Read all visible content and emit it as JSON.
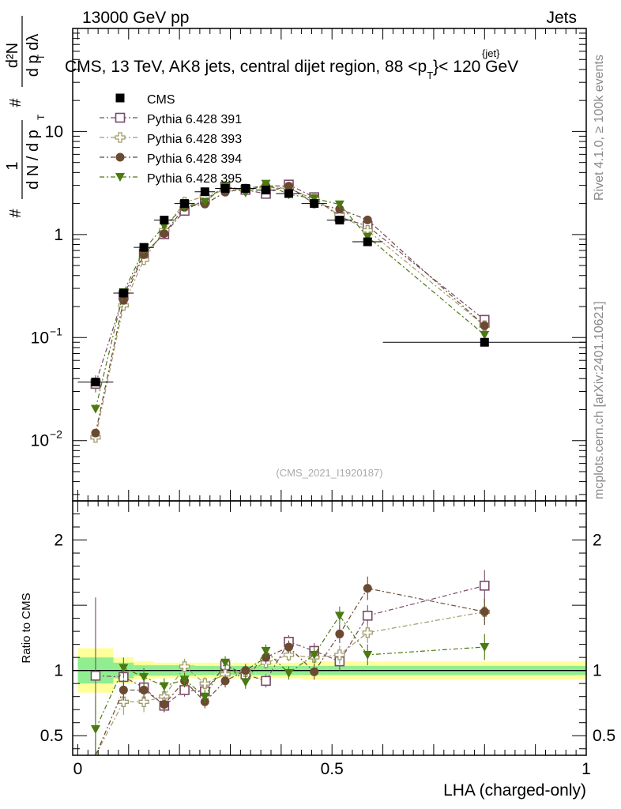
{
  "header": {
    "left": "13000 GeV pp",
    "right": "Jets"
  },
  "title": "CMS, 13 TeV, AK8 jets, central dijet region, 88 <p",
  "title_sup": "{jet}",
  "title_sub": "T",
  "title_end": "}< 120 GeV",
  "side_top": "Rivet 4.1.0, ≥ 100k events",
  "side_bottom": "mcplots.cern.ch [arXiv:2401.10621]",
  "watermark": "(CMS_2021_I1920187)",
  "ylabel_main": "1/N dN/dpT d²N/dpT dλ",
  "ylabel_ratio": "Ratio to CMS",
  "xlabel": "LHA (charged-only)",
  "colors": {
    "cms": "#000000",
    "p391": "#7a4a6a",
    "p393": "#a09a6a",
    "p394": "#6b4a32",
    "p395": "#4a7a10",
    "band_inner": "#90ee90",
    "band_outer": "#ffff99"
  },
  "chart_data": {
    "type": "scatter",
    "x_edges": [
      0.0,
      0.07,
      0.11,
      0.15,
      0.19,
      0.23,
      0.27,
      0.31,
      0.35,
      0.39,
      0.44,
      0.49,
      0.54,
      0.6,
      1.0
    ],
    "x": [
      0.035,
      0.09,
      0.13,
      0.17,
      0.21,
      0.25,
      0.29,
      0.33,
      0.37,
      0.415,
      0.465,
      0.515,
      0.57,
      0.8
    ],
    "xlim": [
      -0.01,
      1.0
    ],
    "ylim_main": [
      0.0026,
      100
    ],
    "ylim_ratio": [
      0.35,
      2.3
    ],
    "xticks": [
      {
        "v": 0,
        "label": "0"
      },
      {
        "v": 0.5,
        "label": "0.5"
      },
      {
        "v": 1,
        "label": "1"
      }
    ],
    "yticks_main": [
      {
        "v": 0.01,
        "base": "10",
        "exp": "−2"
      },
      {
        "v": 0.1,
        "base": "10",
        "exp": "−1"
      },
      {
        "v": 1,
        "base": "1",
        "exp": ""
      },
      {
        "v": 10,
        "base": "10",
        "exp": ""
      }
    ],
    "yticks_ratio": [
      {
        "v": 0.5,
        "label": "0.5"
      },
      {
        "v": 1,
        "label": "1"
      },
      {
        "v": 2,
        "label": "2"
      }
    ],
    "cms": [
      0.037,
      0.27,
      0.75,
      1.38,
      2.0,
      2.6,
      2.8,
      2.8,
      2.7,
      2.5,
      2.0,
      1.38,
      0.85,
      0.09
    ],
    "band_inner": [
      0.1,
      0.06,
      0.04,
      0.04,
      0.04,
      0.035,
      0.035,
      0.035,
      0.035,
      0.035,
      0.035,
      0.035,
      0.035,
      0.035
    ],
    "band_outer": [
      0.17,
      0.1,
      0.07,
      0.06,
      0.06,
      0.06,
      0.06,
      0.06,
      0.06,
      0.06,
      0.07,
      0.07,
      0.07,
      0.07
    ],
    "series": [
      {
        "name": "Pythia 6.428 391",
        "marker": "open-square",
        "color": "#7a4a6a",
        "ratio": [
          0.96,
          0.95,
          0.87,
          0.73,
          0.85,
          0.84,
          1.04,
          0.97,
          0.92,
          1.22,
          1.15,
          1.07,
          1.42,
          1.65
        ],
        "err": [
          0.6,
          0.08,
          0.06,
          0.05,
          0.05,
          0.05,
          0.05,
          0.05,
          0.05,
          0.05,
          0.06,
          0.07,
          0.08,
          0.12
        ]
      },
      {
        "name": "Pythia 6.428 393",
        "marker": "open-cross",
        "color": "#a09a6a",
        "ratio": [
          0.29,
          0.76,
          0.76,
          0.8,
          1.03,
          0.9,
          0.97,
          0.99,
          1.06,
          1.12,
          1.1,
          1.12,
          1.29,
          1.45
        ],
        "err": [
          0.12,
          0.1,
          0.08,
          0.06,
          0.06,
          0.05,
          0.05,
          0.05,
          0.05,
          0.05,
          0.06,
          0.07,
          0.08,
          0.1
        ]
      },
      {
        "name": "Pythia 6.428 394",
        "marker": "filled-circle",
        "color": "#6b4a32",
        "ratio": [
          0.32,
          0.85,
          0.85,
          0.74,
          0.92,
          0.76,
          0.92,
          1.0,
          1.1,
          1.18,
          0.99,
          1.28,
          1.63,
          1.45
        ],
        "err": [
          0.15,
          0.08,
          0.07,
          0.06,
          0.05,
          0.05,
          0.05,
          0.05,
          0.05,
          0.05,
          0.06,
          0.07,
          0.09,
          0.1
        ]
      },
      {
        "name": "Pythia 6.428 395",
        "marker": "filled-triangle-down",
        "color": "#4a7a10",
        "ratio": [
          0.55,
          1.02,
          0.95,
          0.88,
          0.93,
          0.8,
          1.06,
          0.91,
          1.15,
          0.98,
          1.12,
          1.42,
          1.12,
          1.18
        ],
        "err": [
          0.25,
          0.08,
          0.07,
          0.06,
          0.05,
          0.05,
          0.05,
          0.05,
          0.05,
          0.05,
          0.06,
          0.07,
          0.08,
          0.1
        ]
      }
    ],
    "legend": [
      {
        "label": "CMS",
        "marker": "filled-square",
        "color": "#000000"
      },
      {
        "label": "Pythia 6.428 391",
        "marker": "open-square",
        "color": "#7a4a6a"
      },
      {
        "label": "Pythia 6.428 393",
        "marker": "open-cross",
        "color": "#a09a6a"
      },
      {
        "label": "Pythia 6.428 394",
        "marker": "filled-circle",
        "color": "#6b4a32"
      },
      {
        "label": "Pythia 6.428 395",
        "marker": "filled-triangle-down",
        "color": "#4a7a10"
      }
    ]
  }
}
